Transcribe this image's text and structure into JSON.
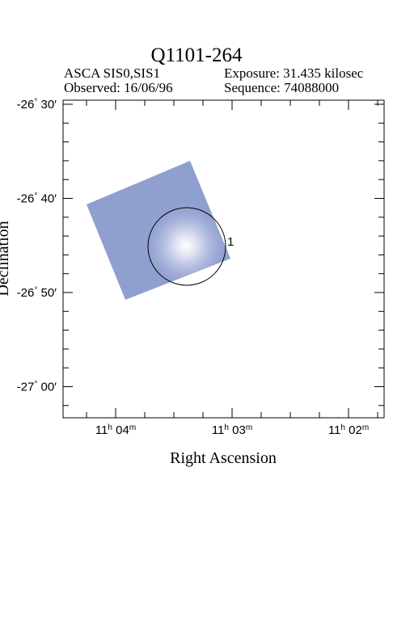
{
  "header": {
    "title": "Q1101-264",
    "instrument": "ASCA SIS0,SIS1",
    "exposure": "Exposure: 31.435 kilosec",
    "observed": "Observed: 16/06/96",
    "sequence": "Sequence: 74088000"
  },
  "axes": {
    "x_label": "Right Ascension",
    "y_label": "Declination",
    "x_ticks": [
      {
        "h": "11",
        "m": "04"
      },
      {
        "h": "11",
        "m": "03"
      },
      {
        "h": "11",
        "m": "02"
      }
    ],
    "y_ticks": [
      {
        "deg": "-26",
        "min": "30"
      },
      {
        "deg": "-26",
        "min": "40"
      },
      {
        "deg": "-26",
        "min": "50"
      },
      {
        "deg": "-27",
        "min": "00"
      }
    ]
  },
  "image": {
    "field_color": "#8f9fcf",
    "source_color": "#e8e8f6"
  },
  "source_region": {
    "label": "1"
  }
}
